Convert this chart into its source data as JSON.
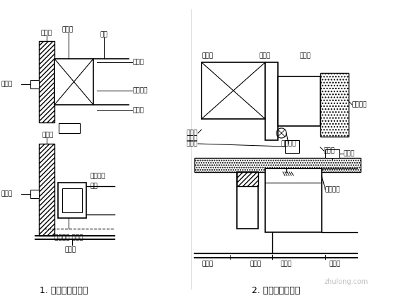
{
  "title1": "1. 防火阀安装方法",
  "title2": "2. 排烟阀安装方法",
  "bg_color": "#ffffff",
  "line_color": "#000000",
  "fig_width": 5.6,
  "fig_height": 4.28,
  "dpi": 100,
  "font_size_label": 6.5,
  "font_size_title": 9,
  "watermark": "zhulong.com"
}
